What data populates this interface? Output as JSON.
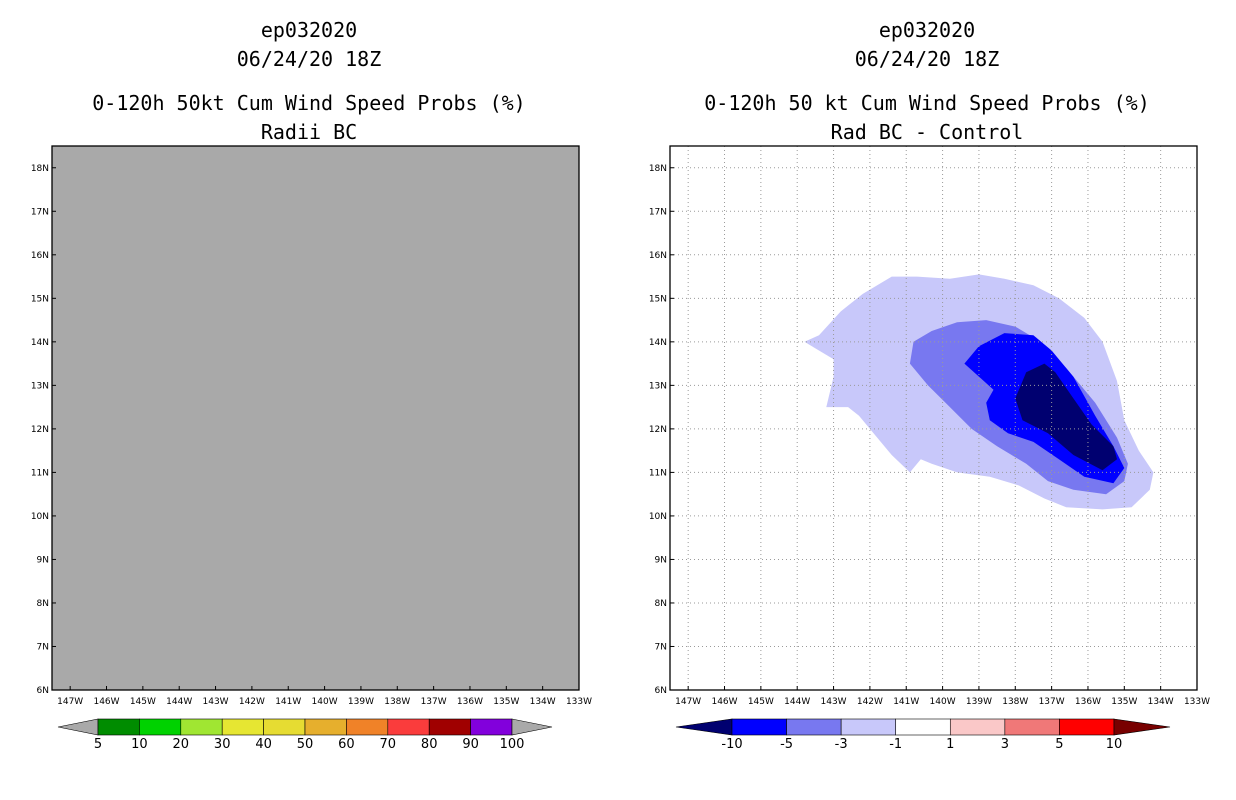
{
  "chart_data": [
    {
      "type": "heatmap",
      "id": "left",
      "title_lines": [
        "ep032020",
        "06/24/20 18Z",
        "0-120h 50kt Cum Wind Speed Probs (%)",
        "Radii BC"
      ],
      "x_ticks": [
        "147W",
        "146W",
        "145W",
        "144W",
        "143W",
        "142W",
        "141W",
        "140W",
        "139W",
        "138W",
        "137W",
        "136W",
        "135W",
        "134W",
        "133W"
      ],
      "x_values": [
        -147,
        -146,
        -145,
        -144,
        -143,
        -142,
        -141,
        -140,
        -139,
        -138,
        -137,
        -136,
        -135,
        -134,
        -133
      ],
      "y_ticks": [
        "6N",
        "7N",
        "8N",
        "9N",
        "10N",
        "11N",
        "12N",
        "13N",
        "14N",
        "15N",
        "16N",
        "17N",
        "18N"
      ],
      "y_values": [
        6,
        7,
        8,
        9,
        10,
        11,
        12,
        13,
        14,
        15,
        16,
        17,
        18
      ],
      "xlim": [
        -147.5,
        -133
      ],
      "ylim": [
        6,
        18.5
      ],
      "field_state": "undefined (entire map shaded gray, no data)",
      "background_color": "#a9a9a9",
      "grid": false,
      "colorbar": {
        "levels": [
          "5",
          "10",
          "20",
          "30",
          "40",
          "50",
          "60",
          "70",
          "80",
          "90",
          "100"
        ],
        "colors": [
          "#a9a9a9",
          "#008c00",
          "#00d200",
          "#a0e632",
          "#e6e632",
          "#e6dc32",
          "#e6af2d",
          "#f08228",
          "#fa3c3c",
          "#a00000",
          "#8200dc",
          "#a9a9a9"
        ]
      }
    },
    {
      "type": "heatmap",
      "id": "right",
      "title_lines": [
        "ep032020",
        "06/24/20 18Z",
        "0-120h 50 kt Cum Wind Speed Probs (%)",
        "Rad BC - Control"
      ],
      "x_ticks": [
        "147W",
        "146W",
        "145W",
        "144W",
        "143W",
        "142W",
        "141W",
        "140W",
        "139W",
        "138W",
        "137W",
        "136W",
        "135W",
        "134W",
        "133W"
      ],
      "x_values": [
        -147,
        -146,
        -145,
        -144,
        -143,
        -142,
        -141,
        -140,
        -139,
        -138,
        -137,
        -136,
        -135,
        -134,
        -133
      ],
      "y_ticks": [
        "6N",
        "7N",
        "8N",
        "9N",
        "10N",
        "11N",
        "12N",
        "13N",
        "14N",
        "15N",
        "16N",
        "17N",
        "18N"
      ],
      "y_values": [
        6,
        7,
        8,
        9,
        10,
        11,
        12,
        13,
        14,
        15,
        16,
        17,
        18
      ],
      "xlim": [
        -147.5,
        -133
      ],
      "ylim": [
        6,
        18.5
      ],
      "grid": true,
      "contours": [
        {
          "level": "-3 to -1",
          "color": "#c8c8fa",
          "polygon": [
            [
              -143.8,
              14.0
            ],
            [
              -143.4,
              14.15
            ],
            [
              -142.8,
              14.7
            ],
            [
              -142.2,
              15.1
            ],
            [
              -141.4,
              15.5
            ],
            [
              -140.7,
              15.5
            ],
            [
              -139.8,
              15.45
            ],
            [
              -139.0,
              15.55
            ],
            [
              -138.3,
              15.45
            ],
            [
              -137.5,
              15.3
            ],
            [
              -136.8,
              15.0
            ],
            [
              -136.1,
              14.55
            ],
            [
              -135.6,
              14.0
            ],
            [
              -135.2,
              13.1
            ],
            [
              -135.0,
              12.2
            ],
            [
              -134.6,
              11.5
            ],
            [
              -134.2,
              11.0
            ],
            [
              -134.3,
              10.6
            ],
            [
              -134.8,
              10.2
            ],
            [
              -135.6,
              10.15
            ],
            [
              -136.6,
              10.2
            ],
            [
              -137.2,
              10.4
            ],
            [
              -137.9,
              10.7
            ],
            [
              -138.7,
              10.9
            ],
            [
              -139.6,
              11.0
            ],
            [
              -140.3,
              11.2
            ],
            [
              -140.6,
              11.3
            ],
            [
              -140.9,
              11.0
            ],
            [
              -141.4,
              11.4
            ],
            [
              -141.8,
              11.8
            ],
            [
              -142.3,
              12.3
            ],
            [
              -142.6,
              12.5
            ],
            [
              -143.2,
              12.5
            ],
            [
              -143.0,
              13.2
            ],
            [
              -143.0,
              13.6
            ],
            [
              -143.5,
              13.85
            ]
          ]
        },
        {
          "level": "-5 to -3",
          "color": "#7878f0",
          "polygon": [
            [
              -140.8,
              14.0
            ],
            [
              -140.3,
              14.25
            ],
            [
              -139.6,
              14.45
            ],
            [
              -138.8,
              14.5
            ],
            [
              -138.0,
              14.35
            ],
            [
              -137.3,
              14.0
            ],
            [
              -136.6,
              13.4
            ],
            [
              -135.8,
              12.6
            ],
            [
              -135.2,
              11.8
            ],
            [
              -134.9,
              11.2
            ],
            [
              -135.0,
              10.8
            ],
            [
              -135.5,
              10.5
            ],
            [
              -136.4,
              10.6
            ],
            [
              -137.1,
              10.8
            ],
            [
              -137.7,
              11.2
            ],
            [
              -138.5,
              11.6
            ],
            [
              -139.2,
              12.0
            ],
            [
              -139.8,
              12.5
            ],
            [
              -140.4,
              13.0
            ],
            [
              -140.9,
              13.5
            ]
          ]
        },
        {
          "level": "-10 to -5",
          "color": "#0000ff",
          "polygon": [
            [
              -139.4,
              13.5
            ],
            [
              -139.0,
              13.9
            ],
            [
              -138.3,
              14.2
            ],
            [
              -137.5,
              14.15
            ],
            [
              -137.0,
              13.8
            ],
            [
              -136.4,
              13.2
            ],
            [
              -135.8,
              12.3
            ],
            [
              -135.3,
              11.6
            ],
            [
              -135.0,
              11.1
            ],
            [
              -135.3,
              10.75
            ],
            [
              -136.1,
              10.9
            ],
            [
              -136.8,
              11.3
            ],
            [
              -137.5,
              11.7
            ],
            [
              -138.2,
              11.9
            ],
            [
              -138.7,
              12.2
            ],
            [
              -138.8,
              12.6
            ],
            [
              -138.6,
              12.9
            ]
          ]
        },
        {
          "level": "< -10",
          "color": "#000070",
          "polygon": [
            [
              -138.0,
              12.7
            ],
            [
              -137.7,
              13.3
            ],
            [
              -137.2,
              13.5
            ],
            [
              -136.9,
              13.3
            ],
            [
              -136.4,
              12.7
            ],
            [
              -135.9,
              12.1
            ],
            [
              -135.3,
              11.6
            ],
            [
              -135.2,
              11.3
            ],
            [
              -135.6,
              11.05
            ],
            [
              -136.4,
              11.4
            ],
            [
              -137.1,
              11.9
            ],
            [
              -137.8,
              12.2
            ]
          ]
        }
      ],
      "colorbar": {
        "levels": [
          "-10",
          "-5",
          "-3",
          "-1",
          "1",
          "3",
          "5",
          "10"
        ],
        "colors": [
          "#000070",
          "#0000ff",
          "#7878f0",
          "#c8c8fa",
          "#ffffff",
          "#fac8c8",
          "#f07878",
          "#ff0000",
          "#780000"
        ]
      }
    }
  ]
}
